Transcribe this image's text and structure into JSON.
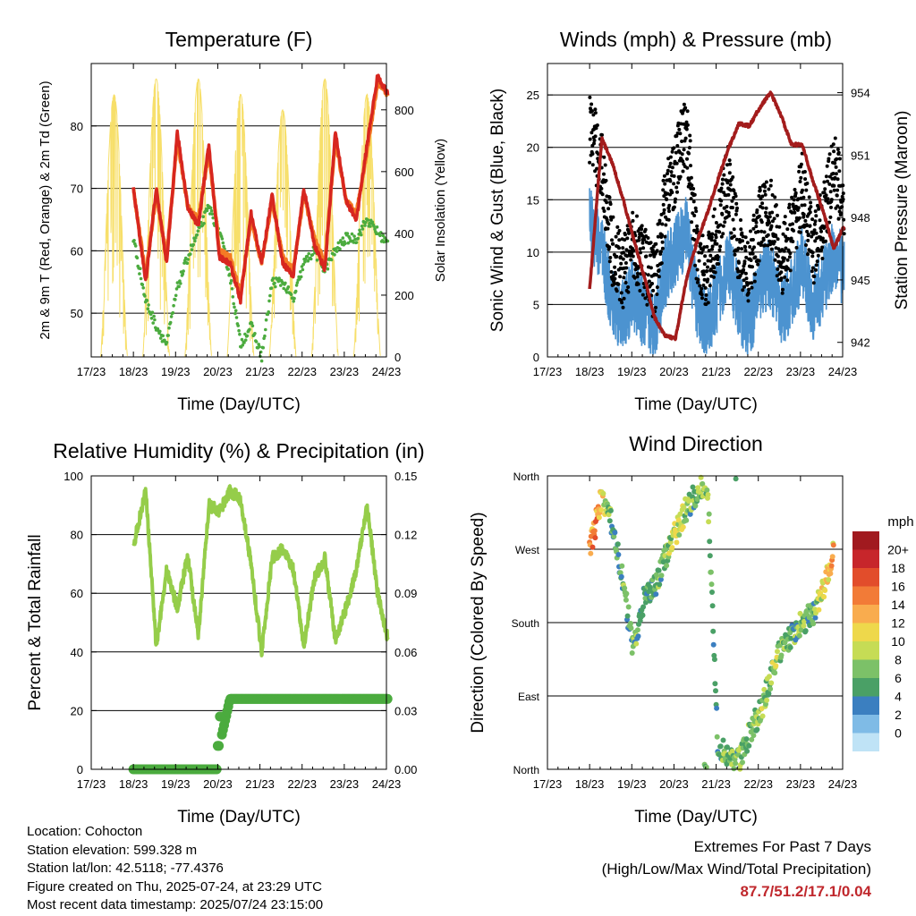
{
  "x_ticks": [
    "17/23",
    "18/23",
    "19/23",
    "20/23",
    "21/23",
    "22/23",
    "23/23",
    "24/23"
  ],
  "charts": {
    "temperature": {
      "title": "Temperature (F)",
      "xlabel": "Time (Day/UTC)",
      "ylabel": "2m & 9m T (Red, Orange) & 2m Td (Green)",
      "y2label": "Solar Insolation (Yellow)",
      "yticks": [
        "50",
        "60",
        "70",
        "80"
      ],
      "y2ticks": [
        "0",
        "200",
        "400",
        "600",
        "800"
      ]
    },
    "winds": {
      "title": "Winds (mph) & Pressure (mb)",
      "xlabel": "Time (Day/UTC)",
      "ylabel": "Sonic Wind & Gust (Blue, Black)",
      "y2label": "Station Pressure (Maroon)",
      "yticks": [
        "0",
        "5",
        "10",
        "15",
        "20",
        "25"
      ],
      "y2ticks": [
        "942",
        "945",
        "948",
        "951",
        "954"
      ]
    },
    "humidity": {
      "title": "Relative Humidity (%) & Precipitation (in)",
      "xlabel": "Time (Day/UTC)",
      "ylabel": "Percent & Total Rainfall",
      "yticks": [
        "0",
        "20",
        "40",
        "60",
        "80",
        "100"
      ],
      "y2ticks": [
        "0.00",
        "0.03",
        "0.06",
        "0.09",
        "0.12",
        "0.15"
      ]
    },
    "direction": {
      "title": "Wind Direction",
      "xlabel": "Time (Day/UTC)",
      "ylabel": "Direction (Colored By Speed)",
      "yticks": [
        "North",
        "East",
        "South",
        "West",
        "North"
      ],
      "legend_title": "mph",
      "legend_labels": [
        "20+",
        "18",
        "16",
        "14",
        "12",
        "10",
        "8",
        "6",
        "4",
        "2",
        "0"
      ],
      "legend_colors": [
        "#a11a1f",
        "#c7262b",
        "#e24d2b",
        "#f27b37",
        "#f9ac4e",
        "#eed84b",
        "#c6dc55",
        "#7cc168",
        "#4aa066",
        "#3b7fc0",
        "#7fbbe6",
        "#bfe3f6"
      ]
    }
  },
  "chart_data": [
    {
      "type": "line",
      "title": "Temperature (F)",
      "xlabel": "Time (Day/UTC)",
      "ylabel": "2m & 9m T (Red, Orange) & 2m Td (Green)",
      "y2label": "Solar Insolation (Yellow)",
      "x": [
        17.96,
        18.25,
        18.5,
        18.75,
        19.0,
        19.25,
        19.5,
        19.75,
        20.0,
        20.25,
        20.5,
        20.75,
        21.0,
        21.25,
        21.5,
        21.75,
        22.0,
        22.25,
        22.5,
        22.75,
        23.0,
        23.25,
        23.5,
        23.75,
        24.0
      ],
      "ylim": [
        43,
        90
      ],
      "y2lim": [
        0,
        950
      ],
      "series": [
        {
          "name": "2m T",
          "axis": "left",
          "values": [
            70,
            55,
            70,
            58,
            79,
            67,
            64,
            77,
            59,
            58,
            52,
            66,
            58,
            69,
            58,
            56,
            70,
            61,
            57,
            79,
            68,
            65,
            77,
            88,
            85
          ]
        },
        {
          "name": "9m T",
          "axis": "left",
          "values": [
            70,
            56,
            69,
            59,
            78,
            67,
            65,
            76,
            60,
            59,
            53,
            65,
            58,
            68,
            59,
            57,
            69,
            62,
            58,
            78,
            68,
            66,
            76,
            87,
            85
          ]
        },
        {
          "name": "2m Td",
          "axis": "left",
          "values": [
            62,
            52,
            48,
            45,
            54,
            59,
            63,
            67,
            63,
            56,
            45,
            48,
            43,
            55,
            55,
            52,
            58,
            60,
            57,
            60,
            62,
            62,
            65,
            63,
            61
          ]
        },
        {
          "name": "Solar Insolation",
          "axis": "right",
          "values": [
            0,
            850,
            0,
            0,
            900,
            0,
            0,
            900,
            0,
            0,
            850,
            0,
            0,
            800,
            0,
            0,
            900,
            0,
            0,
            850,
            0,
            0,
            900,
            0,
            0
          ]
        }
      ]
    },
    {
      "type": "line",
      "title": "Winds (mph) & Pressure (mb)",
      "xlabel": "Time (Day/UTC)",
      "ylabel": "Sonic Wind & Gust (Blue, Black)",
      "y2label": "Station Pressure (Maroon)",
      "x": [
        17.96,
        18.25,
        18.5,
        18.75,
        19.0,
        19.25,
        19.5,
        19.75,
        20.0,
        20.25,
        20.5,
        20.75,
        21.0,
        21.25,
        21.5,
        21.75,
        22.0,
        22.25,
        22.5,
        22.75,
        23.0,
        23.25,
        23.5,
        23.75,
        24.0
      ],
      "ylim": [
        0,
        28
      ],
      "y2lim": [
        941.3,
        955.4
      ],
      "series": [
        {
          "name": "Sonic Wind",
          "axis": "left",
          "values": [
            13,
            10,
            5,
            4,
            6,
            4,
            3,
            8,
            10,
            12,
            5,
            3,
            6,
            9,
            5,
            3,
            7,
            8,
            4,
            6,
            9,
            5,
            7,
            10,
            8
          ]
        },
        {
          "name": "Gust",
          "axis": "left",
          "values": [
            22,
            18,
            10,
            8,
            11,
            9,
            7,
            15,
            18,
            22,
            10,
            8,
            12,
            17,
            10,
            8,
            13,
            14,
            9,
            12,
            16,
            10,
            13,
            18,
            15
          ]
        },
        {
          "name": "Station Pressure",
          "axis": "right",
          "values": [
            944.5,
            951.8,
            950.6,
            948.9,
            947.0,
            945.2,
            943.2,
            942.3,
            942.2,
            945.0,
            946.8,
            948.2,
            949.8,
            951.3,
            952.5,
            952.4,
            953.3,
            954.0,
            952.9,
            951.5,
            951.5,
            949.8,
            948.3,
            946.5,
            947.6
          ]
        }
      ]
    },
    {
      "type": "line",
      "title": "Relative Humidity (%) & Precipitation (in)",
      "xlabel": "Time (Day/UTC)",
      "ylabel": "Percent & Total Rainfall",
      "x": [
        17.96,
        18.25,
        18.5,
        18.75,
        19.0,
        19.25,
        19.5,
        19.75,
        20.0,
        20.25,
        20.5,
        20.75,
        21.0,
        21.25,
        21.5,
        21.75,
        22.0,
        22.25,
        22.5,
        22.75,
        23.0,
        23.25,
        23.5,
        23.75,
        24.0
      ],
      "ylim": [
        0,
        100
      ],
      "y2lim": [
        0,
        0.15
      ],
      "series": [
        {
          "name": "Relative Humidity",
          "axis": "left",
          "values": [
            76,
            95,
            42,
            68,
            55,
            73,
            45,
            90,
            88,
            95,
            92,
            70,
            40,
            72,
            75,
            68,
            42,
            65,
            72,
            44,
            55,
            68,
            90,
            60,
            44
          ]
        },
        {
          "name": "Total Precipitation",
          "axis": "right",
          "values": [
            0,
            0,
            0,
            0,
            0,
            0,
            0,
            0,
            0.012,
            0.036,
            0.036,
            0.036,
            0.036,
            0.036,
            0.036,
            0.036,
            0.036,
            0.036,
            0.036,
            0.036,
            0.036,
            0.036,
            0.036,
            0.036,
            0.036
          ]
        }
      ]
    },
    {
      "type": "scatter",
      "title": "Wind Direction",
      "xlabel": "Time (Day/UTC)",
      "ylabel": "Direction (Colored By Speed)",
      "yticks": [
        "North",
        "East",
        "South",
        "West",
        "North"
      ],
      "ylim": [
        0,
        360
      ],
      "x": [
        17.96,
        18.1,
        18.25,
        18.5,
        18.75,
        19.0,
        19.25,
        19.5,
        19.75,
        20.0,
        20.25,
        20.5,
        20.75,
        21.0,
        21.25,
        21.5,
        21.75,
        22.0,
        22.25,
        22.5,
        22.75,
        23.0,
        23.25,
        23.5,
        23.75
      ],
      "series": [
        {
          "name": "Direction",
          "values": [
            270,
            300,
            335,
            300,
            230,
            145,
            210,
            225,
            260,
            290,
            320,
            340,
            355,
            30,
            15,
            10,
            45,
            70,
            110,
            150,
            165,
            180,
            190,
            220,
            270
          ]
        },
        {
          "name": "Speed",
          "values": [
            14,
            16,
            12,
            6,
            6,
            7,
            6,
            7,
            8,
            10,
            8,
            7,
            9,
            6,
            8,
            7,
            6,
            9,
            8,
            9,
            7,
            8,
            6,
            12,
            13
          ]
        }
      ]
    }
  ],
  "info": {
    "location": "Location: Cohocton",
    "elevation": "Station elevation: 599.328 m",
    "latlon": "Station lat/lon: 42.5118; -77.4376",
    "created": "Figure created on Thu, 2025-07-24, at 23:29 UTC",
    "recent": "Most recent data timestamp: 2025/07/24 23:15:00"
  },
  "extremes": {
    "heading": "Extremes For Past 7 Days",
    "subheading": "(High/Low/Max Wind/Total Precipitation)",
    "values": "87.7/51.2/17.1/0.04"
  },
  "colors": {
    "temp2m": "#d7261f",
    "temp9m": "#f47a25",
    "dewpoint": "#4bab3e",
    "solar": "#f7df6a",
    "wind": "#4c93d0",
    "gust": "#000000",
    "pressure": "#a31c1c",
    "humidity": "#95cd4a",
    "precip": "#4bab3e"
  }
}
